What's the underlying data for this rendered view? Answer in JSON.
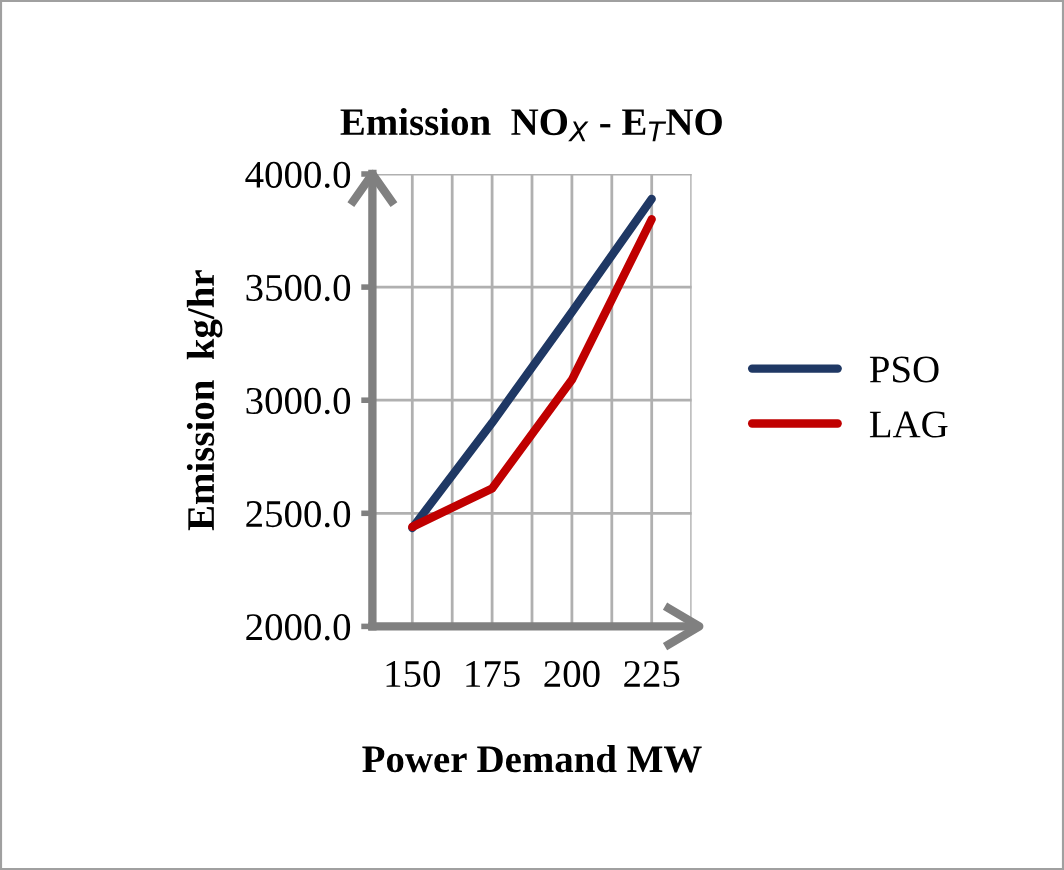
{
  "chart_data": {
    "type": "line",
    "title": "Emission  NO$_{X}$ - E$_{T}$NO",
    "xlabel": "Power Demand MW",
    "ylabel": "Emission  kg/hr",
    "categories": [
      "150",
      "175",
      "200",
      "225"
    ],
    "series": [
      {
        "name": "PSO",
        "color": "#1f3864",
        "values": [
          2435,
          2900,
          3390,
          3890
        ]
      },
      {
        "name": "LAG",
        "color": "#c00000",
        "values": [
          2440,
          2610,
          3090,
          3800
        ]
      }
    ],
    "ylim": [
      2000,
      4000
    ],
    "yticks": [
      {
        "value": 2000,
        "label": "2000.0"
      },
      {
        "value": 2500,
        "label": "2500.0"
      },
      {
        "value": 3000,
        "label": "3000.0"
      },
      {
        "value": 3500,
        "label": "3500.0"
      },
      {
        "value": 4000,
        "label": "4000.0"
      }
    ],
    "grid": true,
    "legend": "right",
    "marker": "none",
    "line_style": "solid"
  }
}
